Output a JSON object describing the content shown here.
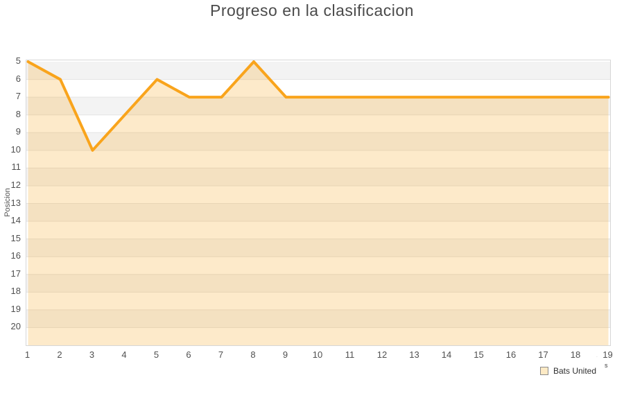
{
  "header": {
    "title": "Progreso en la clasificacion"
  },
  "chart_data": {
    "type": "area",
    "title": "Progreso en la clasificacion",
    "xlabel": "",
    "ylabel": "Posicion",
    "x": [
      1,
      2,
      3,
      4,
      5,
      6,
      7,
      8,
      9,
      10,
      11,
      12,
      13,
      14,
      15,
      16,
      17,
      18,
      19
    ],
    "series": [
      {
        "name": "Bats United",
        "values": [
          5,
          6,
          10,
          8,
          6,
          7,
          7,
          5,
          7,
          7,
          7,
          7,
          7,
          7,
          7,
          7,
          7,
          7,
          7
        ]
      }
    ],
    "y_axis": {
      "label": "Posicion",
      "min": 5,
      "max": 21,
      "ticks": [
        5,
        6,
        7,
        8,
        9,
        10,
        11,
        12,
        13,
        14,
        15,
        16,
        17,
        18,
        19,
        20
      ],
      "inverted": true
    },
    "x_ticks": [
      1,
      2,
      3,
      4,
      5,
      6,
      7,
      8,
      9,
      10,
      11,
      12,
      13,
      14,
      15,
      16,
      17,
      18,
      19
    ],
    "grid": true,
    "legend_position": "bottom-right",
    "colors": {
      "line": "#f9a41c",
      "fill": "rgba(245,167,35,0.24)",
      "band_odd": "#f3f3f3",
      "band_even": "#ffffff",
      "gridline": "#e4e4e4",
      "plot_border": "#d6d6d6",
      "tick_text": "#4f4f4f",
      "title_text": "#4a4a4a",
      "legend_swatch_fill": "#fdeac5",
      "legend_swatch_border": "#8b8b8b"
    }
  },
  "legend": {
    "label": "Bats United",
    "superscript": "s",
    "mark_left": "'",
    "mark_right": "'"
  }
}
